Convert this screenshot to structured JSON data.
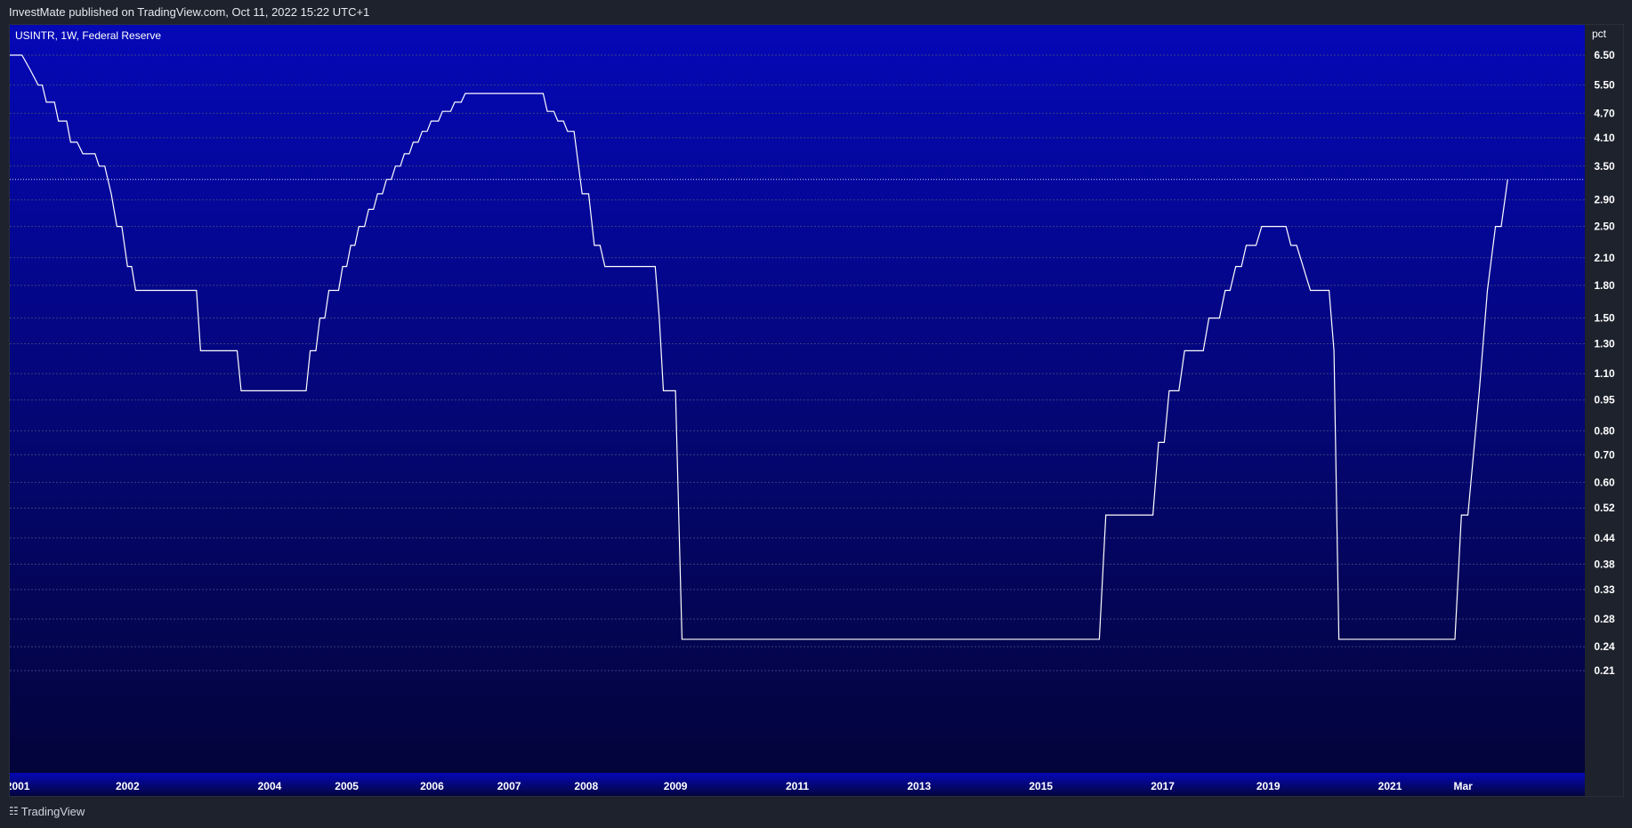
{
  "header": {
    "published": "InvestMate published on TradingView.com, Oct 11, 2022 15:22 UTC+1"
  },
  "footer": {
    "brand": "TradingView",
    "logo_glyph": "☷"
  },
  "colors": {
    "page_bg": "#1e222d",
    "plot_top": "#0508b6",
    "plot_bottom": "#030436",
    "line": "#ffffff",
    "grid": "#3a3f80"
  },
  "chart_data": {
    "type": "line",
    "title": "USINTR, 1W, Federal Reserve",
    "ylabel": "pct",
    "yscale": "log",
    "ylim": [
      0.21,
      7.5
    ],
    "y_ticks": [
      0.21,
      0.24,
      0.28,
      0.33,
      0.38,
      0.44,
      0.52,
      0.6,
      0.7,
      0.8,
      0.95,
      1.1,
      1.3,
      1.5,
      1.8,
      2.1,
      2.5,
      2.9,
      3.5,
      4.1,
      4.7,
      5.5,
      6.5
    ],
    "y_tick_labels": [
      "0.21",
      "0.24",
      "0.28",
      "0.33",
      "0.38",
      "0.44",
      "0.52",
      "0.60",
      "0.70",
      "0.80",
      "0.95",
      "1.10",
      "1.30",
      "1.50",
      "1.80",
      "2.10",
      "2.50",
      "2.90",
      "3.50",
      "4.10",
      "4.70",
      "5.50",
      "6.50"
    ],
    "x_ticks": [
      {
        "label": "2001",
        "x": 2001.0
      },
      {
        "label": "2002",
        "x": 2002.35
      },
      {
        "label": "2004",
        "x": 2004.1
      },
      {
        "label": "2005",
        "x": 2005.05
      },
      {
        "label": "2006",
        "x": 2006.1
      },
      {
        "label": "2007",
        "x": 2007.05
      },
      {
        "label": "2008",
        "x": 2008.0
      },
      {
        "label": "2009",
        "x": 2009.1
      },
      {
        "label": "2011",
        "x": 2010.6
      },
      {
        "label": "2013",
        "x": 2012.1
      },
      {
        "label": "2015",
        "x": 2013.6
      },
      {
        "label": "2017",
        "x": 2015.1
      },
      {
        "label": "2019",
        "x": 2016.4
      },
      {
        "label": "2021",
        "x": 2017.9
      },
      {
        "label": "Mar",
        "x": 2018.8
      }
    ],
    "xlim": [
      2000.9,
      2020.3
    ],
    "last_value": 3.25,
    "series": [
      {
        "values": [
          [
            2000.9,
            6.5
          ],
          [
            2001.05,
            6.5
          ],
          [
            2001.15,
            6.0
          ],
          [
            2001.25,
            5.5
          ],
          [
            2001.3,
            5.5
          ],
          [
            2001.35,
            5.0
          ],
          [
            2001.45,
            5.0
          ],
          [
            2001.5,
            4.5
          ],
          [
            2001.6,
            4.5
          ],
          [
            2001.65,
            4.0
          ],
          [
            2001.73,
            4.0
          ],
          [
            2001.8,
            3.75
          ],
          [
            2001.95,
            3.75
          ],
          [
            2002.0,
            3.5
          ],
          [
            2002.07,
            3.5
          ],
          [
            2002.15,
            3.0
          ],
          [
            2002.22,
            2.5
          ],
          [
            2002.28,
            2.5
          ],
          [
            2002.35,
            2.0
          ],
          [
            2002.4,
            2.0
          ],
          [
            2002.45,
            1.75
          ],
          [
            2003.2,
            1.75
          ],
          [
            2003.25,
            1.25
          ],
          [
            2003.7,
            1.25
          ],
          [
            2003.75,
            1.0
          ],
          [
            2004.55,
            1.0
          ],
          [
            2004.6,
            1.25
          ],
          [
            2004.67,
            1.25
          ],
          [
            2004.72,
            1.5
          ],
          [
            2004.78,
            1.5
          ],
          [
            2004.83,
            1.75
          ],
          [
            2004.95,
            1.75
          ],
          [
            2005.0,
            2.0
          ],
          [
            2005.05,
            2.0
          ],
          [
            2005.1,
            2.25
          ],
          [
            2005.15,
            2.25
          ],
          [
            2005.2,
            2.5
          ],
          [
            2005.27,
            2.5
          ],
          [
            2005.32,
            2.75
          ],
          [
            2005.38,
            2.75
          ],
          [
            2005.43,
            3.0
          ],
          [
            2005.49,
            3.0
          ],
          [
            2005.54,
            3.25
          ],
          [
            2005.6,
            3.25
          ],
          [
            2005.65,
            3.5
          ],
          [
            2005.71,
            3.5
          ],
          [
            2005.76,
            3.75
          ],
          [
            2005.82,
            3.75
          ],
          [
            2005.87,
            4.0
          ],
          [
            2005.93,
            4.0
          ],
          [
            2005.98,
            4.25
          ],
          [
            2006.04,
            4.25
          ],
          [
            2006.09,
            4.5
          ],
          [
            2006.18,
            4.5
          ],
          [
            2006.23,
            4.75
          ],
          [
            2006.33,
            4.75
          ],
          [
            2006.38,
            5.0
          ],
          [
            2006.46,
            5.0
          ],
          [
            2006.51,
            5.25
          ],
          [
            2007.47,
            5.25
          ],
          [
            2007.52,
            4.75
          ],
          [
            2007.6,
            4.75
          ],
          [
            2007.65,
            4.5
          ],
          [
            2007.72,
            4.5
          ],
          [
            2007.77,
            4.25
          ],
          [
            2007.85,
            4.25
          ],
          [
            2007.95,
            3.0
          ],
          [
            2008.03,
            3.0
          ],
          [
            2008.1,
            2.25
          ],
          [
            2008.17,
            2.25
          ],
          [
            2008.23,
            2.0
          ],
          [
            2008.85,
            2.0
          ],
          [
            2008.9,
            1.5
          ],
          [
            2008.95,
            1.0
          ],
          [
            2009.1,
            1.0
          ],
          [
            2009.18,
            0.25
          ],
          [
            2014.32,
            0.25
          ],
          [
            2014.4,
            0.5
          ],
          [
            2014.98,
            0.5
          ],
          [
            2015.05,
            0.75
          ],
          [
            2015.12,
            0.75
          ],
          [
            2015.18,
            1.0
          ],
          [
            2015.3,
            1.0
          ],
          [
            2015.37,
            1.25
          ],
          [
            2015.6,
            1.25
          ],
          [
            2015.67,
            1.5
          ],
          [
            2015.8,
            1.5
          ],
          [
            2015.87,
            1.75
          ],
          [
            2015.93,
            1.75
          ],
          [
            2016.0,
            2.0
          ],
          [
            2016.07,
            2.0
          ],
          [
            2016.13,
            2.25
          ],
          [
            2016.25,
            2.25
          ],
          [
            2016.32,
            2.5
          ],
          [
            2016.62,
            2.5
          ],
          [
            2016.68,
            2.25
          ],
          [
            2016.75,
            2.25
          ],
          [
            2016.92,
            1.75
          ],
          [
            2017.15,
            1.75
          ],
          [
            2017.21,
            1.25
          ],
          [
            2017.27,
            0.25
          ],
          [
            2018.7,
            0.25
          ],
          [
            2018.78,
            0.5
          ],
          [
            2018.86,
            0.5
          ],
          [
            2019.0,
            1.0
          ],
          [
            2019.1,
            1.75
          ],
          [
            2019.2,
            2.5
          ],
          [
            2019.27,
            2.5
          ],
          [
            2019.35,
            3.25
          ]
        ]
      }
    ]
  }
}
